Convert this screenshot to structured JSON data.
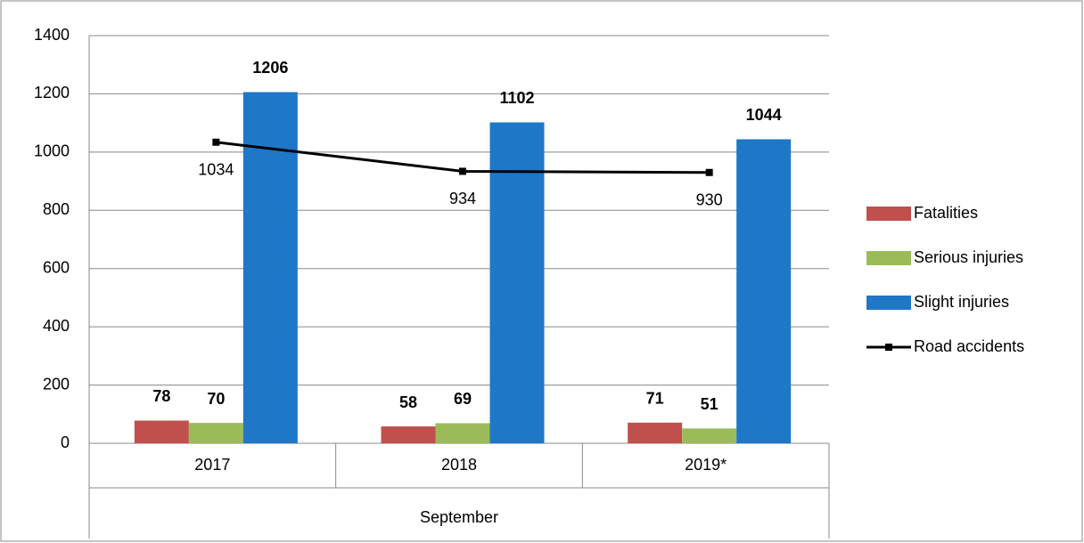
{
  "chart_data": {
    "type": "bar",
    "categories": [
      "2017",
      "2018",
      "2019*"
    ],
    "xlabel": "September",
    "series": [
      {
        "name": "Fatalities",
        "color": "#c0504d",
        "values": [
          78,
          58,
          71
        ]
      },
      {
        "name": "Serious injuries",
        "color": "#9bbb59",
        "values": [
          70,
          69,
          51
        ]
      },
      {
        "name": "Slight injuries",
        "color": "#1f77c8",
        "values": [
          1206,
          1102,
          1044
        ]
      },
      {
        "name": "Road accidents",
        "type": "line",
        "color": "#000000",
        "values": [
          1034,
          934,
          930
        ]
      }
    ],
    "ylim": [
      0,
      1400
    ],
    "yticks": [
      0,
      200,
      400,
      600,
      800,
      1000,
      1200,
      1400
    ],
    "grid": true,
    "legend": "right"
  }
}
